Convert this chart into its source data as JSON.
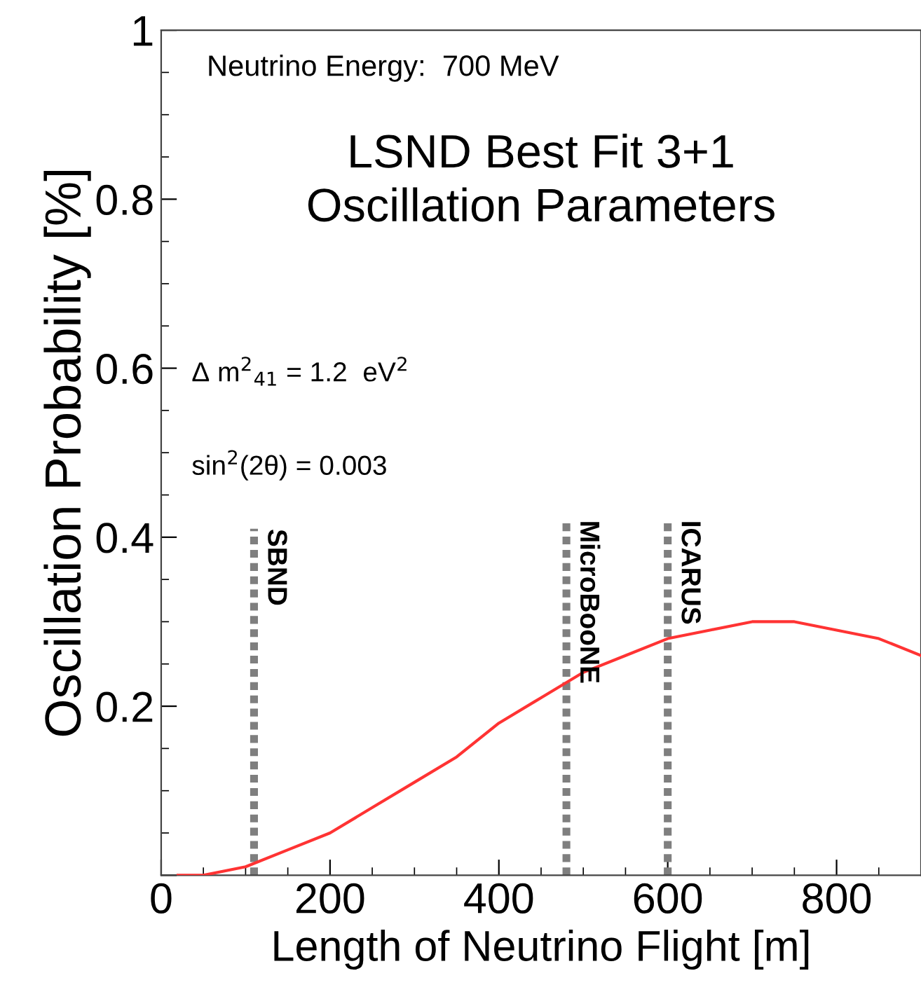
{
  "chart_data": {
    "type": "line",
    "title": "LSND Best Fit 3+1\nOscillation Parameters",
    "xlabel": "Length of Neutrino Flight [m]",
    "ylabel": "Oscillation Probability [%]",
    "annotations": [
      "Neutrino Energy:  700 MeV",
      "Δ m$^{2}$$_{41}$ = 1.2  eV$^{2}$",
      "sin$^{2}$(2θ) = 0.003"
    ],
    "xlim": [
      0,
      900
    ],
    "xticks": [
      0,
      200,
      400,
      600,
      800
    ],
    "ylim": [
      0,
      1
    ],
    "yticks": [
      {
        "value": 0,
        "label": null
      },
      0.2,
      0.4,
      0.6,
      0.8,
      {
        "value": 1,
        "label": "1"
      }
    ],
    "series": [
      {
        "color": "#ff3333",
        "x": [
          20,
          50,
          100,
          150,
          200,
          250,
          300,
          350,
          400,
          450,
          500,
          550,
          600,
          650,
          700,
          750,
          800,
          850,
          900
        ],
        "values": [
          0.0,
          0.0,
          0.01,
          0.03,
          0.05,
          0.08,
          0.11,
          0.14,
          0.18,
          0.21,
          0.24,
          0.26,
          0.28,
          0.29,
          0.3,
          0.3,
          0.29,
          0.28,
          0.26
        ]
      },
      {
        "name": "SBND",
        "color": "#7f7f7f",
        "line_style": "dotted",
        "x": [
          110,
          110
        ],
        "values": [
          0,
          0.41
        ]
      },
      {
        "name": "MicroBooNE",
        "color": "#7f7f7f",
        "line_style": "dotted",
        "x": [
          480,
          480
        ],
        "values": [
          0,
          0.42
        ]
      },
      {
        "name": "ICARUS",
        "color": "#7f7f7f",
        "line_style": "dotted",
        "x": [
          600,
          600
        ],
        "values": [
          0,
          0.42
        ]
      }
    ]
  }
}
